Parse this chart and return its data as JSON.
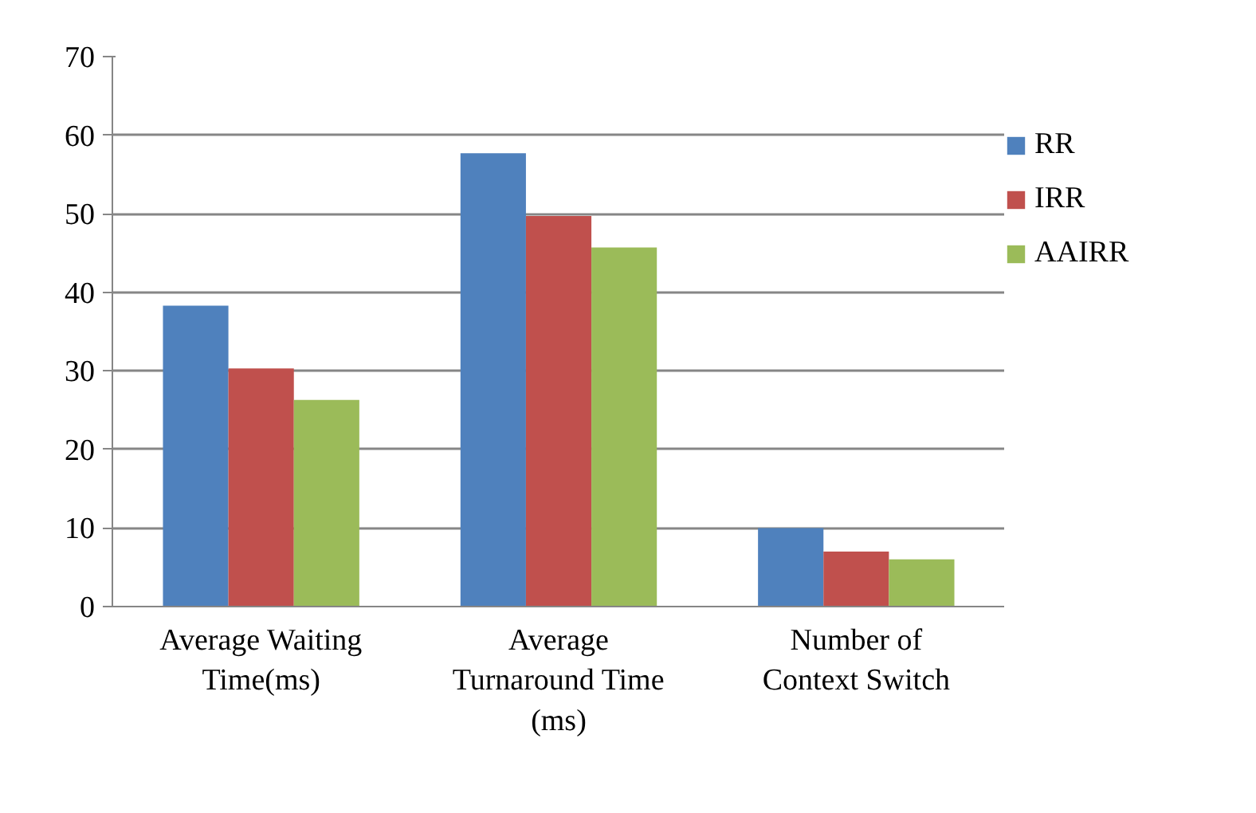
{
  "chart_data": {
    "type": "bar",
    "categories": [
      "Average Waiting Time(ms)",
      "Average Turnaround Time (ms)",
      "Number of Context Switch"
    ],
    "series": [
      {
        "name": "RR",
        "color": "#4f81bd",
        "values": [
          38.3,
          57.7,
          10
        ]
      },
      {
        "name": "IRR",
        "color": "#c0504d",
        "values": [
          30.3,
          49.7,
          7
        ]
      },
      {
        "name": "AAIRR",
        "color": "#9bbb59",
        "values": [
          26.3,
          45.7,
          6
        ]
      }
    ],
    "ylim": [
      0,
      70
    ],
    "yticks": [
      0,
      10,
      20,
      30,
      40,
      50,
      60,
      70
    ],
    "grid": "y",
    "legend": "right"
  }
}
